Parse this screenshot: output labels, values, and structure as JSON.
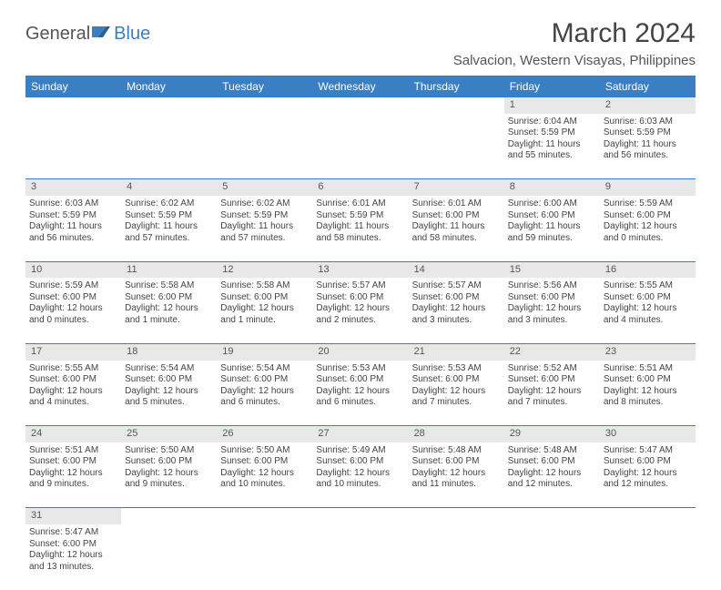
{
  "logo": {
    "part1": "General",
    "part2": "Blue"
  },
  "title": "March 2024",
  "location": "Salvacion, Western Visayas, Philippines",
  "colors": {
    "header_bg": "#3a7fc4",
    "header_text": "#ffffff",
    "daynum_bg": "#e8e8e8",
    "rule": "#3a7fc4",
    "body_text": "#444444"
  },
  "day_headers": [
    "Sunday",
    "Monday",
    "Tuesday",
    "Wednesday",
    "Thursday",
    "Friday",
    "Saturday"
  ],
  "weeks": [
    [
      null,
      null,
      null,
      null,
      null,
      {
        "n": "1",
        "sr": "Sunrise: 6:04 AM",
        "ss": "Sunset: 5:59 PM",
        "dl1": "Daylight: 11 hours",
        "dl2": "and 55 minutes."
      },
      {
        "n": "2",
        "sr": "Sunrise: 6:03 AM",
        "ss": "Sunset: 5:59 PM",
        "dl1": "Daylight: 11 hours",
        "dl2": "and 56 minutes."
      }
    ],
    [
      {
        "n": "3",
        "sr": "Sunrise: 6:03 AM",
        "ss": "Sunset: 5:59 PM",
        "dl1": "Daylight: 11 hours",
        "dl2": "and 56 minutes."
      },
      {
        "n": "4",
        "sr": "Sunrise: 6:02 AM",
        "ss": "Sunset: 5:59 PM",
        "dl1": "Daylight: 11 hours",
        "dl2": "and 57 minutes."
      },
      {
        "n": "5",
        "sr": "Sunrise: 6:02 AM",
        "ss": "Sunset: 5:59 PM",
        "dl1": "Daylight: 11 hours",
        "dl2": "and 57 minutes."
      },
      {
        "n": "6",
        "sr": "Sunrise: 6:01 AM",
        "ss": "Sunset: 5:59 PM",
        "dl1": "Daylight: 11 hours",
        "dl2": "and 58 minutes."
      },
      {
        "n": "7",
        "sr": "Sunrise: 6:01 AM",
        "ss": "Sunset: 6:00 PM",
        "dl1": "Daylight: 11 hours",
        "dl2": "and 58 minutes."
      },
      {
        "n": "8",
        "sr": "Sunrise: 6:00 AM",
        "ss": "Sunset: 6:00 PM",
        "dl1": "Daylight: 11 hours",
        "dl2": "and 59 minutes."
      },
      {
        "n": "9",
        "sr": "Sunrise: 5:59 AM",
        "ss": "Sunset: 6:00 PM",
        "dl1": "Daylight: 12 hours",
        "dl2": "and 0 minutes."
      }
    ],
    [
      {
        "n": "10",
        "sr": "Sunrise: 5:59 AM",
        "ss": "Sunset: 6:00 PM",
        "dl1": "Daylight: 12 hours",
        "dl2": "and 0 minutes."
      },
      {
        "n": "11",
        "sr": "Sunrise: 5:58 AM",
        "ss": "Sunset: 6:00 PM",
        "dl1": "Daylight: 12 hours",
        "dl2": "and 1 minute."
      },
      {
        "n": "12",
        "sr": "Sunrise: 5:58 AM",
        "ss": "Sunset: 6:00 PM",
        "dl1": "Daylight: 12 hours",
        "dl2": "and 1 minute."
      },
      {
        "n": "13",
        "sr": "Sunrise: 5:57 AM",
        "ss": "Sunset: 6:00 PM",
        "dl1": "Daylight: 12 hours",
        "dl2": "and 2 minutes."
      },
      {
        "n": "14",
        "sr": "Sunrise: 5:57 AM",
        "ss": "Sunset: 6:00 PM",
        "dl1": "Daylight: 12 hours",
        "dl2": "and 3 minutes."
      },
      {
        "n": "15",
        "sr": "Sunrise: 5:56 AM",
        "ss": "Sunset: 6:00 PM",
        "dl1": "Daylight: 12 hours",
        "dl2": "and 3 minutes."
      },
      {
        "n": "16",
        "sr": "Sunrise: 5:55 AM",
        "ss": "Sunset: 6:00 PM",
        "dl1": "Daylight: 12 hours",
        "dl2": "and 4 minutes."
      }
    ],
    [
      {
        "n": "17",
        "sr": "Sunrise: 5:55 AM",
        "ss": "Sunset: 6:00 PM",
        "dl1": "Daylight: 12 hours",
        "dl2": "and 4 minutes."
      },
      {
        "n": "18",
        "sr": "Sunrise: 5:54 AM",
        "ss": "Sunset: 6:00 PM",
        "dl1": "Daylight: 12 hours",
        "dl2": "and 5 minutes."
      },
      {
        "n": "19",
        "sr": "Sunrise: 5:54 AM",
        "ss": "Sunset: 6:00 PM",
        "dl1": "Daylight: 12 hours",
        "dl2": "and 6 minutes."
      },
      {
        "n": "20",
        "sr": "Sunrise: 5:53 AM",
        "ss": "Sunset: 6:00 PM",
        "dl1": "Daylight: 12 hours",
        "dl2": "and 6 minutes."
      },
      {
        "n": "21",
        "sr": "Sunrise: 5:53 AM",
        "ss": "Sunset: 6:00 PM",
        "dl1": "Daylight: 12 hours",
        "dl2": "and 7 minutes."
      },
      {
        "n": "22",
        "sr": "Sunrise: 5:52 AM",
        "ss": "Sunset: 6:00 PM",
        "dl1": "Daylight: 12 hours",
        "dl2": "and 7 minutes."
      },
      {
        "n": "23",
        "sr": "Sunrise: 5:51 AM",
        "ss": "Sunset: 6:00 PM",
        "dl1": "Daylight: 12 hours",
        "dl2": "and 8 minutes."
      }
    ],
    [
      {
        "n": "24",
        "sr": "Sunrise: 5:51 AM",
        "ss": "Sunset: 6:00 PM",
        "dl1": "Daylight: 12 hours",
        "dl2": "and 9 minutes."
      },
      {
        "n": "25",
        "sr": "Sunrise: 5:50 AM",
        "ss": "Sunset: 6:00 PM",
        "dl1": "Daylight: 12 hours",
        "dl2": "and 9 minutes."
      },
      {
        "n": "26",
        "sr": "Sunrise: 5:50 AM",
        "ss": "Sunset: 6:00 PM",
        "dl1": "Daylight: 12 hours",
        "dl2": "and 10 minutes."
      },
      {
        "n": "27",
        "sr": "Sunrise: 5:49 AM",
        "ss": "Sunset: 6:00 PM",
        "dl1": "Daylight: 12 hours",
        "dl2": "and 10 minutes."
      },
      {
        "n": "28",
        "sr": "Sunrise: 5:48 AM",
        "ss": "Sunset: 6:00 PM",
        "dl1": "Daylight: 12 hours",
        "dl2": "and 11 minutes."
      },
      {
        "n": "29",
        "sr": "Sunrise: 5:48 AM",
        "ss": "Sunset: 6:00 PM",
        "dl1": "Daylight: 12 hours",
        "dl2": "and 12 minutes."
      },
      {
        "n": "30",
        "sr": "Sunrise: 5:47 AM",
        "ss": "Sunset: 6:00 PM",
        "dl1": "Daylight: 12 hours",
        "dl2": "and 12 minutes."
      }
    ],
    [
      {
        "n": "31",
        "sr": "Sunrise: 5:47 AM",
        "ss": "Sunset: 6:00 PM",
        "dl1": "Daylight: 12 hours",
        "dl2": "and 13 minutes."
      },
      null,
      null,
      null,
      null,
      null,
      null
    ]
  ]
}
